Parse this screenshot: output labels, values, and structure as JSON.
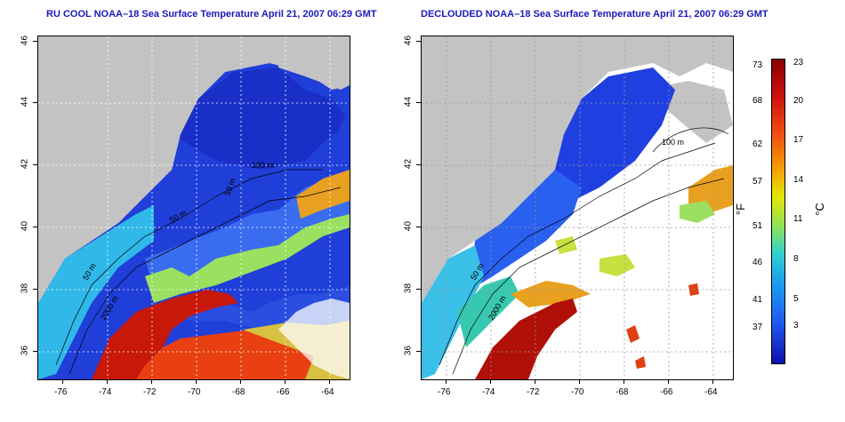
{
  "panels": [
    {
      "title": "RU COOL NOAA–18 Sea Surface Temperature April 21, 2007 06:29 GMT"
    },
    {
      "title": "DECLOUDED NOAA–18 Sea Surface Temperature April 21, 2007 06:29 GMT"
    }
  ],
  "axes": {
    "y_ticks": [
      "46",
      "44",
      "42",
      "40",
      "38",
      "36"
    ],
    "x_ticks": [
      "-76",
      "-74",
      "-72",
      "-70",
      "-68",
      "-66",
      "-64"
    ]
  },
  "contour_labels": {
    "left": [
      "50 m",
      "2000 m",
      "100 m",
      "50 m",
      "50 m"
    ],
    "right": [
      "50 m",
      "2000 m",
      "100 m"
    ]
  },
  "colorbar": {
    "fahrenheit": [
      "73",
      "68",
      "62",
      "57",
      "51",
      "46",
      "41",
      "37"
    ],
    "celsius": [
      "23",
      "20",
      "17",
      "14",
      "11",
      "8",
      "5",
      "3"
    ],
    "unit_f": "°F",
    "unit_c": "°C"
  },
  "colors": {
    "land": "#c3c3c3",
    "cold": "#1f4de8",
    "warm": "#cc1a10",
    "mid": "#e8e020",
    "title": "#1a1ab8"
  }
}
